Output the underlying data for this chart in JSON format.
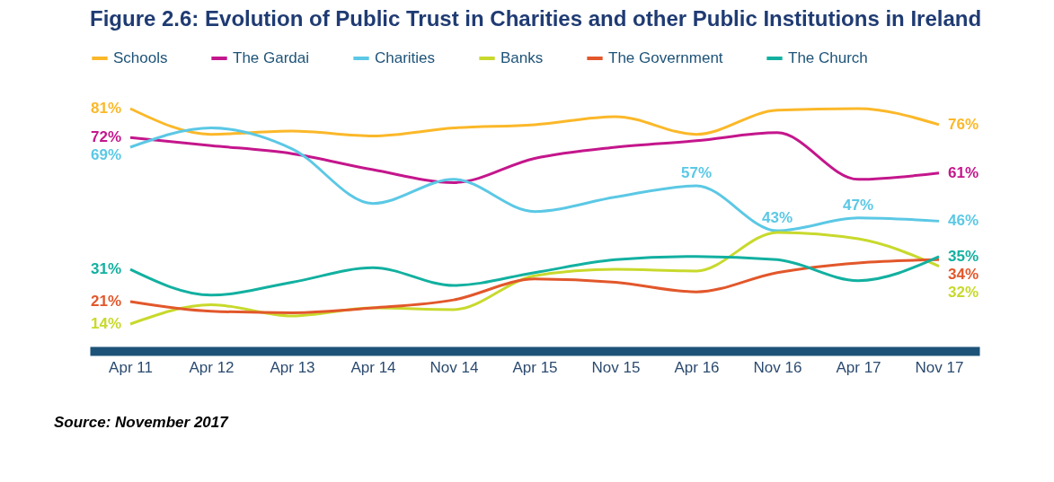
{
  "chart_data": {
    "type": "line",
    "title": "Figure 2.6: Evolution of Public Trust in Charities and other Public Institutions in Ireland",
    "categories": [
      "Apr 11",
      "Apr 12",
      "Apr 13",
      "Apr 14",
      "Nov 14",
      "Apr 15",
      "Nov 15",
      "Apr 16",
      "Nov 16",
      "Apr 17",
      "Nov 17"
    ],
    "series": [
      {
        "name": "Schools",
        "color": "#fbb829",
        "values": [
          81,
          73,
          74,
          72.5,
          75,
          76,
          78.5,
          73,
          80.5,
          81,
          76
        ],
        "value_labels": [
          "81%",
          null,
          null,
          null,
          null,
          null,
          null,
          null,
          null,
          null,
          "76%"
        ]
      },
      {
        "name": "The Gardai",
        "color": "#c4168c",
        "values": [
          72,
          69.5,
          67,
          62,
          58,
          65.5,
          69,
          71,
          73.5,
          59,
          61
        ],
        "value_labels": [
          "72%",
          null,
          null,
          null,
          null,
          null,
          null,
          null,
          null,
          null,
          "61%"
        ]
      },
      {
        "name": "Charities",
        "color": "#5bc8e5",
        "values": [
          69,
          75,
          68.5,
          51.5,
          59,
          49,
          53.5,
          57,
          43,
          47,
          46
        ],
        "value_labels": [
          "69%",
          null,
          null,
          null,
          null,
          null,
          null,
          "57%",
          "43%",
          "47%",
          "46%"
        ]
      },
      {
        "name": "Banks",
        "color": "#c8d92c",
        "values": [
          14,
          20,
          16.5,
          19,
          18.5,
          29,
          31,
          30.5,
          42.5,
          40.5,
          32
        ],
        "value_labels": [
          "14%",
          null,
          null,
          null,
          null,
          null,
          null,
          null,
          null,
          null,
          "32%"
        ]
      },
      {
        "name": "The Government",
        "color": "#e2572b",
        "values": [
          21,
          18,
          17.5,
          19,
          21.5,
          28,
          27,
          24,
          30,
          33,
          34
        ],
        "value_labels": [
          "21%",
          null,
          null,
          null,
          null,
          null,
          null,
          null,
          null,
          null,
          "34%"
        ]
      },
      {
        "name": "The Church",
        "color": "#12b0a0",
        "values": [
          31,
          23,
          27,
          31.5,
          26,
          30,
          34,
          35,
          34,
          27.5,
          35
        ],
        "value_labels": [
          "31%",
          null,
          null,
          null,
          null,
          null,
          null,
          null,
          null,
          null,
          "35%"
        ]
      }
    ],
    "legend": "top",
    "grid": false,
    "marker": "none",
    "line_style": "solid",
    "annotations": [
      "Source: November 2017"
    ]
  }
}
